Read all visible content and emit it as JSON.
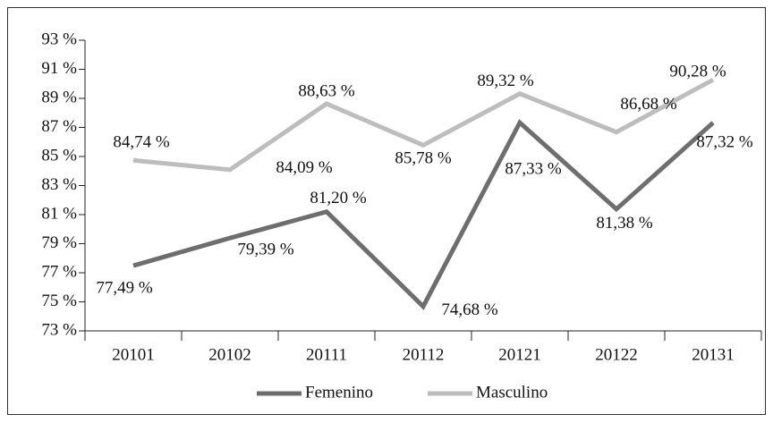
{
  "chart_data": {
    "type": "line",
    "categories": [
      "20101",
      "20102",
      "20111",
      "20112",
      "20121",
      "20122",
      "20131"
    ],
    "series": [
      {
        "name": "Femenino",
        "color": "#6e6e6e",
        "values": [
          77.49,
          79.39,
          81.2,
          74.68,
          87.33,
          81.38,
          87.32
        ],
        "value_labels": [
          "77,49 %",
          "79,39 %",
          "81,20 %",
          "74,68 %",
          "87,33 %",
          "81,38 %",
          "87,32 %"
        ]
      },
      {
        "name": "Masculino",
        "color": "#bdbdbd",
        "values": [
          84.74,
          84.09,
          88.63,
          85.78,
          89.32,
          86.68,
          90.28
        ],
        "value_labels": [
          "84,74 %",
          "84,09 %",
          "88,63 %",
          "85,78 %",
          "89,32 %",
          "86,68 %",
          "90,28 %"
        ]
      }
    ],
    "ylim": [
      73,
      93
    ],
    "yticks": [
      {
        "value": 73,
        "label": "73 %"
      },
      {
        "value": 75,
        "label": "75 %"
      },
      {
        "value": 77,
        "label": "77 %"
      },
      {
        "value": 79,
        "label": "79 %"
      },
      {
        "value": 81,
        "label": "81 %"
      },
      {
        "value": 83,
        "label": "83 %"
      },
      {
        "value": 85,
        "label": "85 %"
      },
      {
        "value": 87,
        "label": "87 %"
      },
      {
        "value": 89,
        "label": "89 %"
      },
      {
        "value": 91,
        "label": "91 %"
      },
      {
        "value": 93,
        "label": "93 %"
      }
    ],
    "legend": "bottom"
  }
}
